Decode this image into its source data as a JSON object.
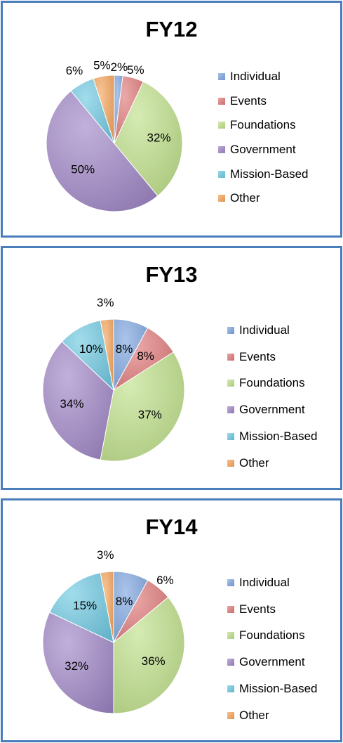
{
  "chart_data": [
    {
      "type": "pie",
      "title": "FY12",
      "categories": [
        "Individual",
        "Events",
        "Foundations",
        "Government",
        "Mission-Based",
        "Other"
      ],
      "values": [
        2,
        5,
        32,
        50,
        6,
        5
      ],
      "labels": [
        "2%",
        "5%",
        "32%",
        "50%",
        "6%",
        "5%"
      ],
      "legend_position": "right"
    },
    {
      "type": "pie",
      "title": "FY13",
      "categories": [
        "Individual",
        "Events",
        "Foundations",
        "Government",
        "Mission-Based",
        "Other"
      ],
      "values": [
        8,
        8,
        37,
        34,
        10,
        3
      ],
      "labels": [
        "8%",
        "8%",
        "37%",
        "34%",
        "10%",
        "3%"
      ],
      "legend_position": "right"
    },
    {
      "type": "pie",
      "title": "FY14",
      "categories": [
        "Individual",
        "Events",
        "Foundations",
        "Government",
        "Mission-Based",
        "Other"
      ],
      "values": [
        8,
        6,
        36,
        32,
        15,
        3
      ],
      "labels": [
        "8%",
        "6%",
        "36%",
        "32%",
        "15%",
        "3%"
      ],
      "legend_position": "right"
    }
  ],
  "colors": [
    "#7ea6e0",
    "#e07a7a",
    "#bfe08a",
    "#9f86c6",
    "#6fc9e2",
    "#f6a45a"
  ]
}
